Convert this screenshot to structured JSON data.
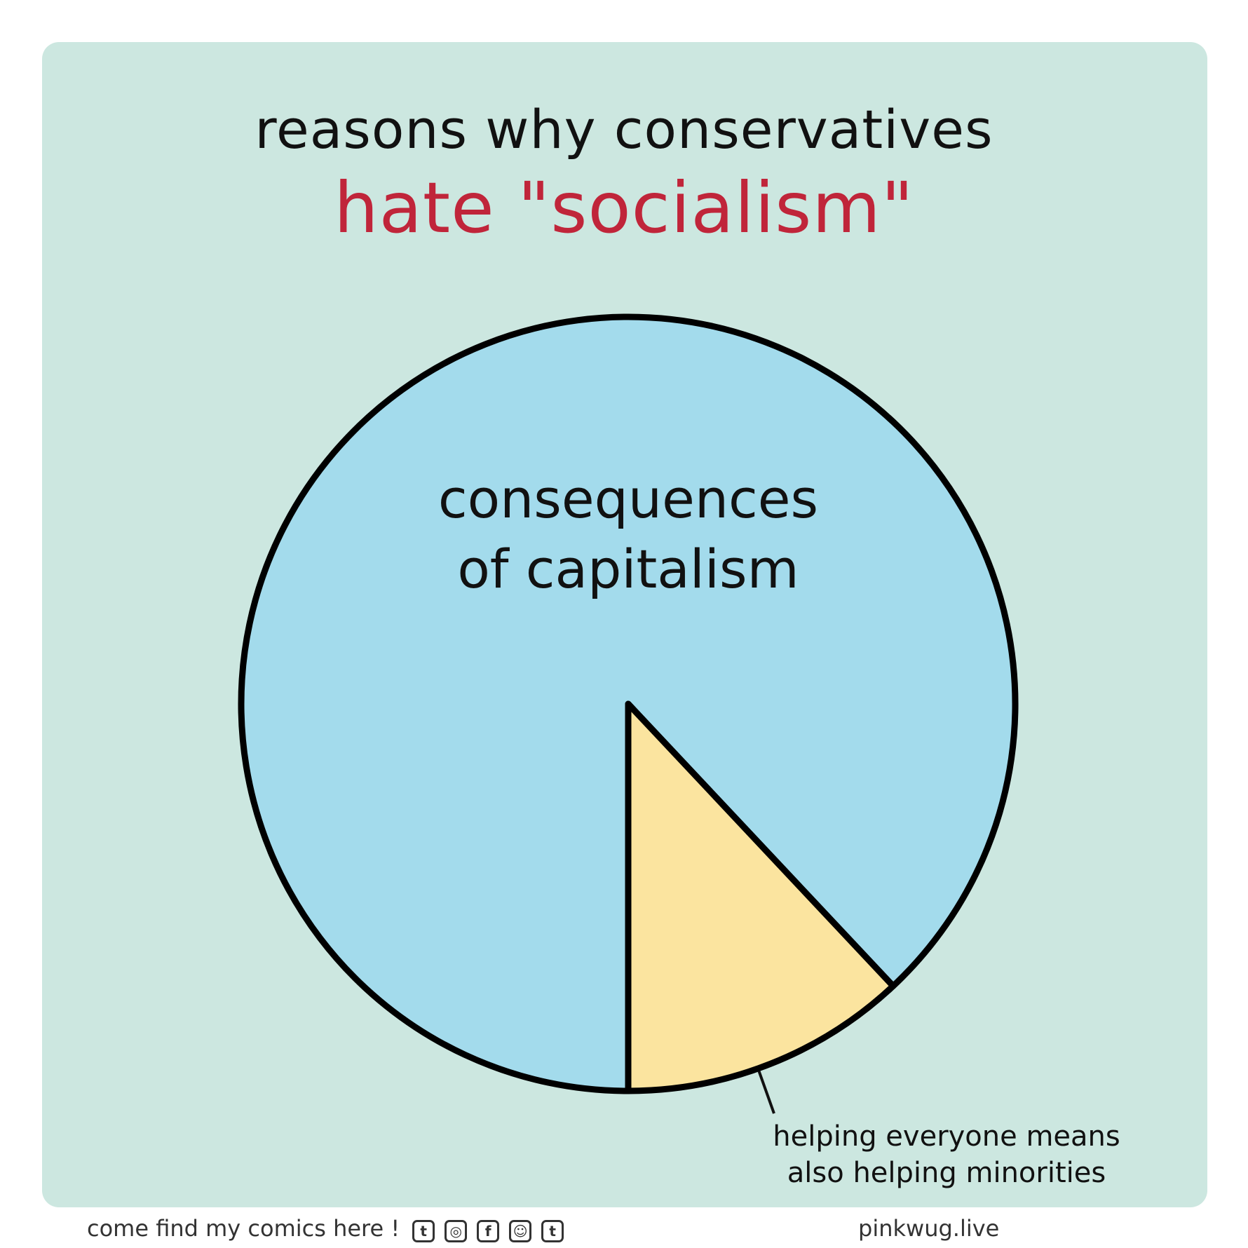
{
  "header": {
    "line1": "reasons why conservatives",
    "line2": "hate \"socialism\""
  },
  "chart_data": {
    "type": "pie",
    "title": "reasons why conservatives hate \"socialism\"",
    "start_angle_deg": 180,
    "direction": "counterclockwise",
    "slices": [
      {
        "label_lines": [
          "consequences",
          "of capitalism"
        ],
        "value": 88,
        "color": "#a3dbec"
      },
      {
        "label_lines": [
          "helping everyone means",
          "also helping minorities"
        ],
        "value": 12,
        "color": "#fbe49f"
      }
    ],
    "stroke_color": "#000000",
    "legend": "none"
  },
  "footer": {
    "left_text": "come find my comics here !",
    "icons": [
      {
        "name": "twitter-icon",
        "glyph": "t"
      },
      {
        "name": "instagram-icon",
        "glyph": "◎"
      },
      {
        "name": "facebook-icon",
        "glyph": "f"
      },
      {
        "name": "reddit-icon",
        "glyph": "☺"
      },
      {
        "name": "tumblr-icon",
        "glyph": "t"
      }
    ],
    "right_text": "pinkwug.live"
  },
  "colors": {
    "background_panel": "#cce7e0",
    "title_black": "#111111",
    "title_red": "#c0253a"
  }
}
